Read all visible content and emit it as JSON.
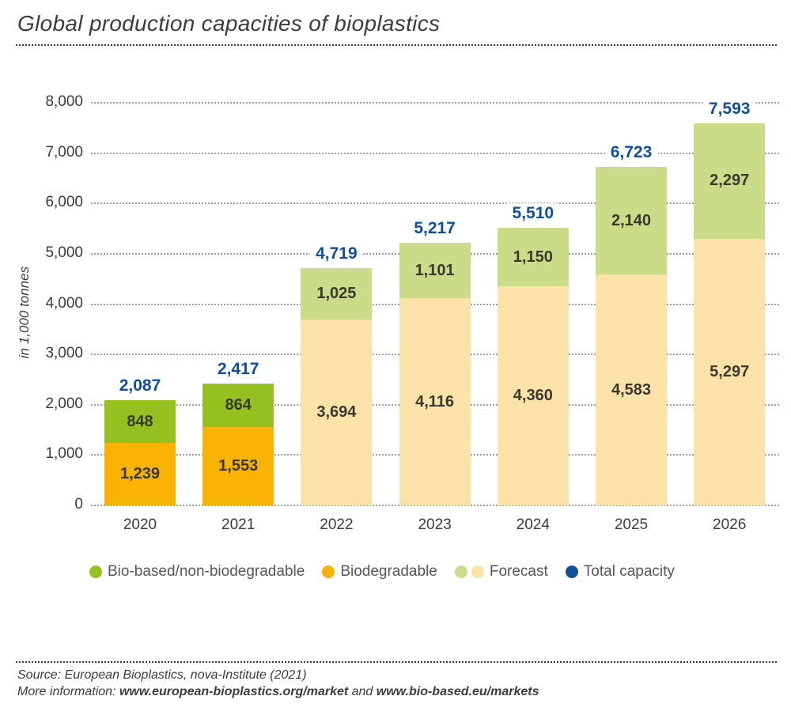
{
  "header": {
    "title": "Global production capacities of bioplastics"
  },
  "chart_data": {
    "type": "bar",
    "stacked": true,
    "title": "Global production capacities of bioplastics",
    "xlabel": "",
    "ylabel": "in 1,000 tonnes",
    "ylim": [
      0,
      8000
    ],
    "ytick_step": 1000,
    "ytick_labels": [
      "0",
      "1,000",
      "2,000",
      "3,000",
      "4,000",
      "5,000",
      "6,000",
      "7,000",
      "8,000"
    ],
    "grid": "horizontal-dotted",
    "categories": [
      "2020",
      "2021",
      "2022",
      "2023",
      "2024",
      "2025",
      "2026"
    ],
    "series": [
      {
        "name": "Biodegradable",
        "values": [
          1239,
          1553,
          3694,
          4116,
          4360,
          4583,
          5297
        ]
      },
      {
        "name": "Bio-based/non-biodegradable",
        "values": [
          848,
          864,
          1025,
          1101,
          1150,
          2140,
          2297
        ]
      }
    ],
    "totals": [
      2087,
      2417,
      4719,
      5217,
      5510,
      6723,
      7593
    ],
    "forecast_start_category": "2022",
    "colors": {
      "bio_based": "#94c11f",
      "biodegradable": "#f8b200",
      "forecast_bio_based": "#cbdc88",
      "forecast_biodegradable": "#fbe2a8",
      "total": "#0e4f9d"
    },
    "legend_position": "bottom"
  },
  "legend": {
    "items": [
      {
        "label": "Bio-based/non-biodegradable",
        "dot_colors": [
          "#94c11f"
        ]
      },
      {
        "label": "Biodegradable",
        "dot_colors": [
          "#f8b200"
        ]
      },
      {
        "label": "Forecast",
        "dot_colors": [
          "#cbdc88",
          "#fbe2a8"
        ]
      },
      {
        "label": "Total capacity",
        "dot_colors": [
          "#0e4f9d"
        ]
      }
    ]
  },
  "footer": {
    "source": "Source: European Bioplastics, nova-Institute (2021)",
    "more_info_prefix": "More information: ",
    "link1": "www.european-bioplastics.org/market",
    "separator": " and ",
    "link2": "www.bio-based.eu/markets"
  }
}
